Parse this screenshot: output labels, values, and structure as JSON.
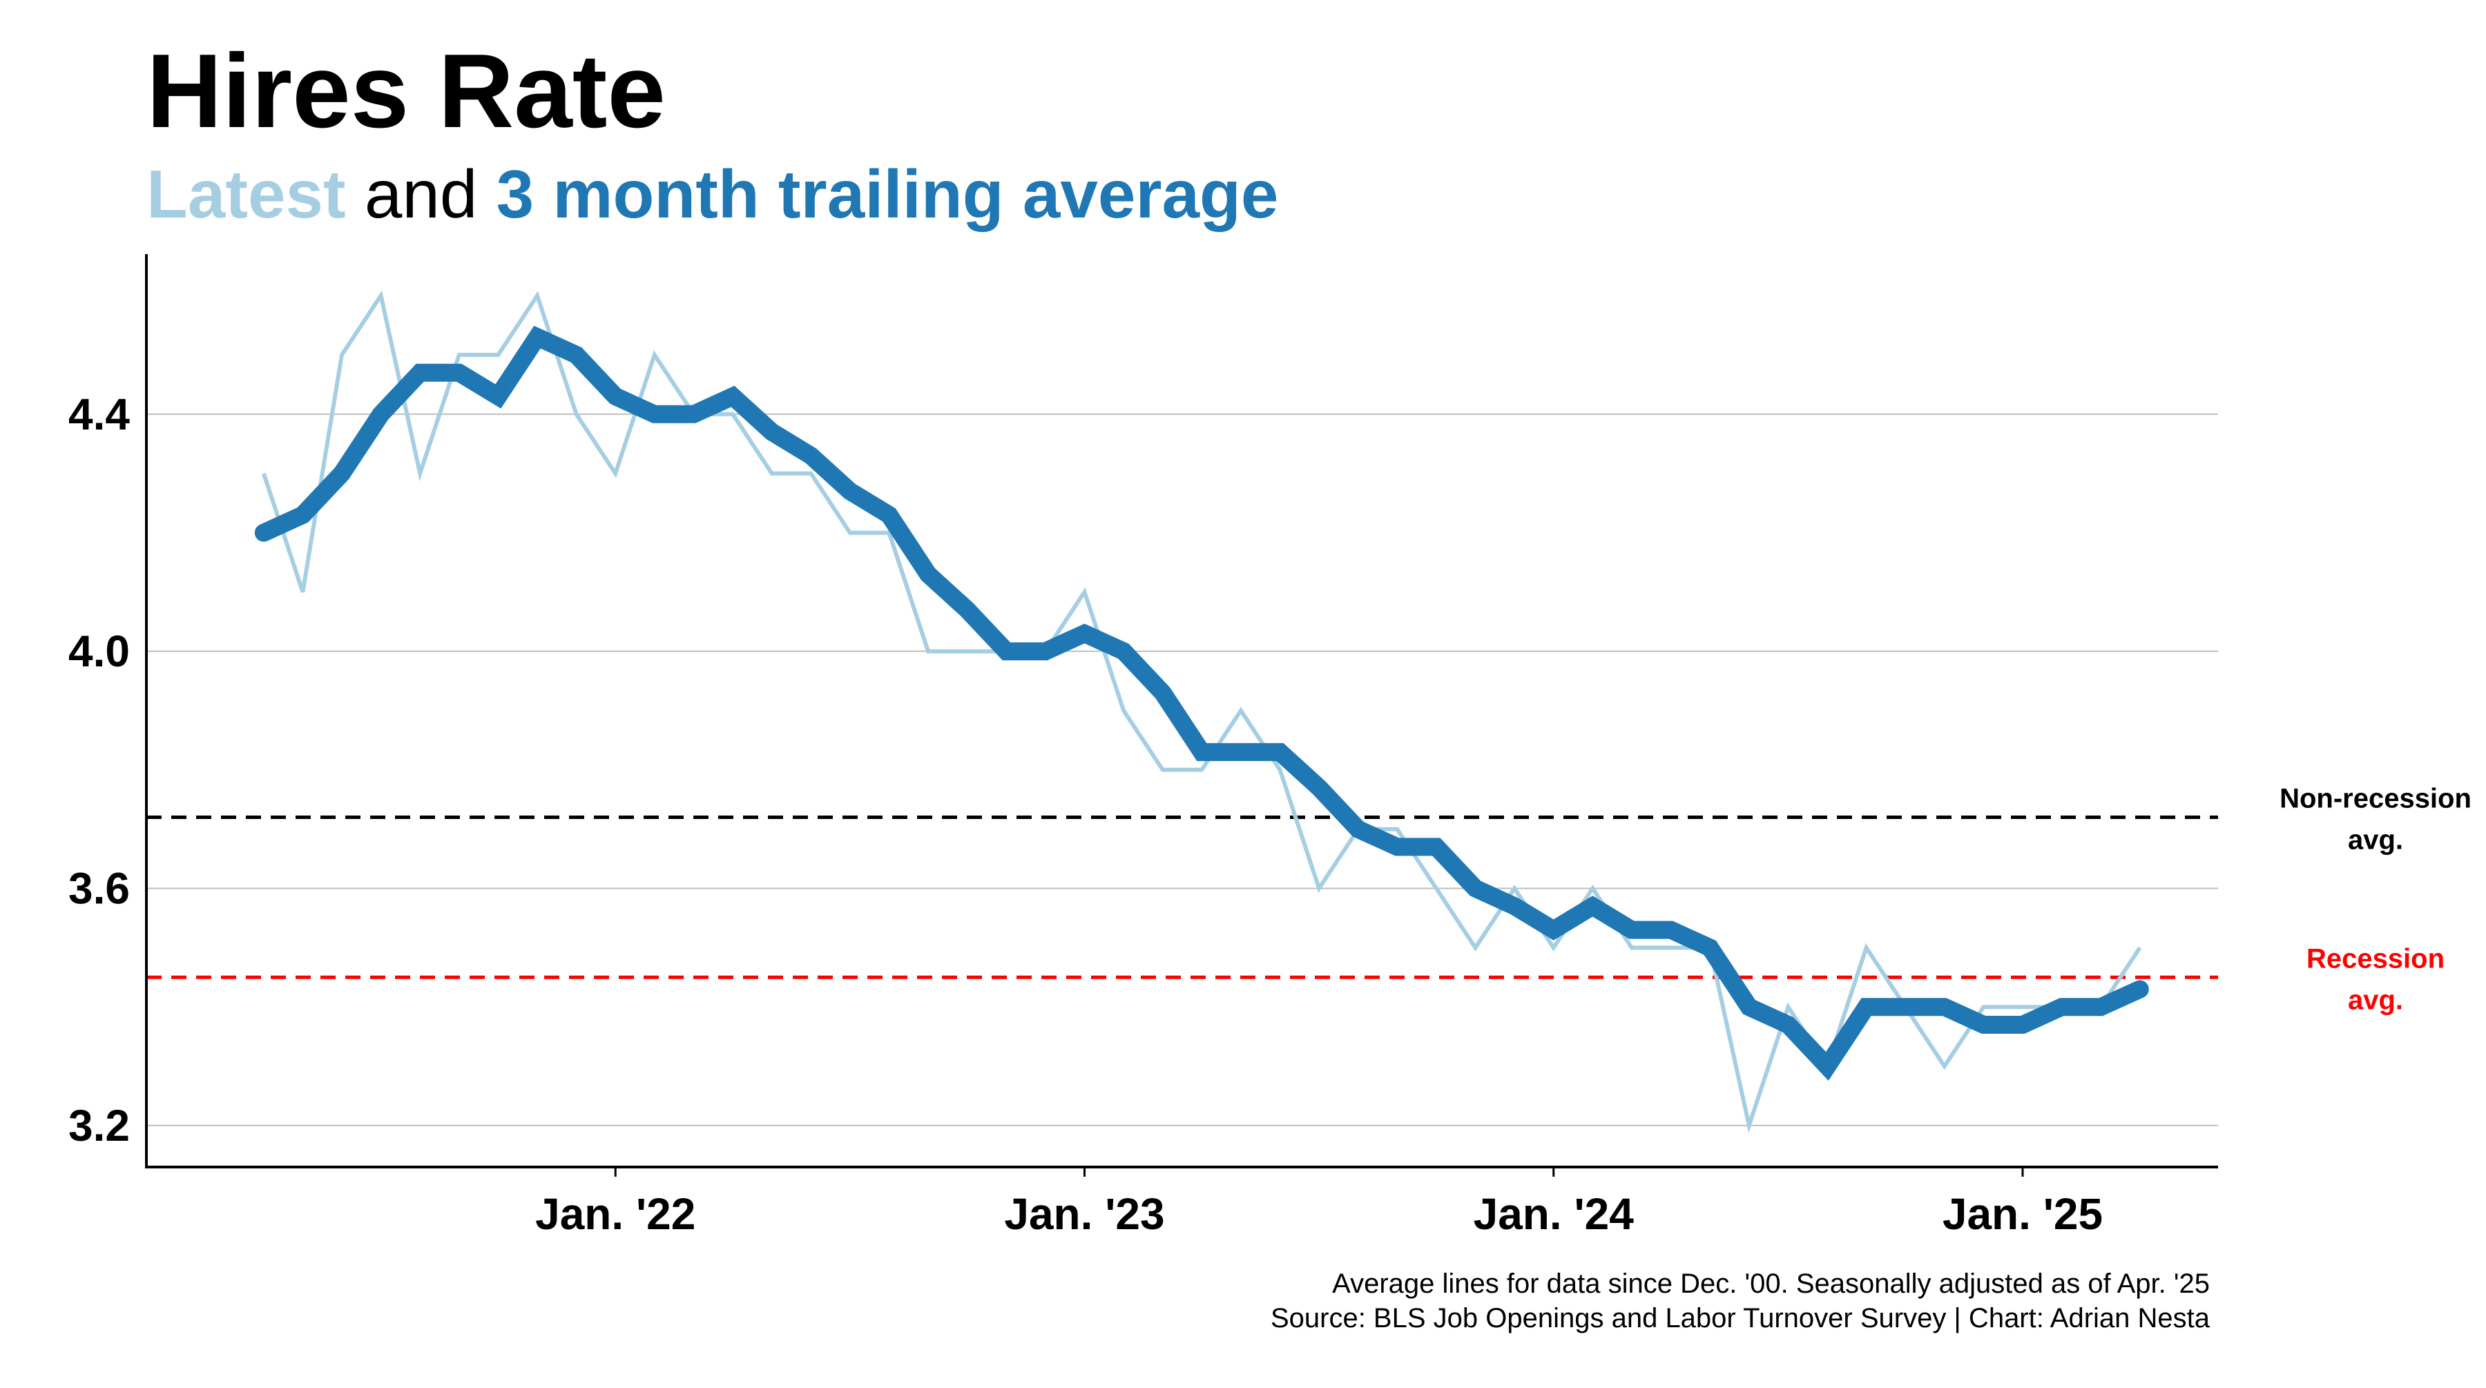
{
  "title": "Hires Rate",
  "subtitle": {
    "part1": "Latest",
    "part2": " and ",
    "part3": "3 month trailing average",
    "part1_color": "#a6cee3",
    "part3_color": "#1f78b4"
  },
  "caption": {
    "line1": "Average lines for data since Dec. '00. Seasonally adjusted as of Apr. '25",
    "line2": "Source: BLS Job Openings and Labor Turnover Survey | Chart: Adrian Nesta"
  },
  "chart_data": {
    "type": "line",
    "title": "Hires Rate",
    "xlabel": "",
    "ylabel": "",
    "ylim": [
      3.13,
      4.67
    ],
    "y_ticks": [
      "3.2",
      "3.6",
      "4.0",
      "4.4"
    ],
    "x_ticks": [
      {
        "label": "Jan. '22",
        "date": "2022-01"
      },
      {
        "label": "Jan. '23",
        "date": "2023-01"
      },
      {
        "label": "Jan. '24",
        "date": "2024-01"
      },
      {
        "label": "Jan. '25",
        "date": "2025-01"
      }
    ],
    "x_range": [
      "2021-01",
      "2025-06"
    ],
    "grid": "horizontal",
    "x": [
      "2021-04",
      "2021-05",
      "2021-06",
      "2021-07",
      "2021-08",
      "2021-09",
      "2021-10",
      "2021-11",
      "2021-12",
      "2022-01",
      "2022-02",
      "2022-03",
      "2022-04",
      "2022-05",
      "2022-06",
      "2022-07",
      "2022-08",
      "2022-09",
      "2022-10",
      "2022-11",
      "2022-12",
      "2023-01",
      "2023-02",
      "2023-03",
      "2023-04",
      "2023-05",
      "2023-06",
      "2023-07",
      "2023-08",
      "2023-09",
      "2023-10",
      "2023-11",
      "2023-12",
      "2024-01",
      "2024-02",
      "2024-03",
      "2024-04",
      "2024-05",
      "2024-06",
      "2024-07",
      "2024-08",
      "2024-09",
      "2024-10",
      "2024-11",
      "2024-12",
      "2025-01",
      "2025-02",
      "2025-03",
      "2025-04"
    ],
    "series": [
      {
        "name": "Latest",
        "color": "#a6cee3",
        "values": [
          4.3,
          4.1,
          4.5,
          4.6,
          4.3,
          4.5,
          4.5,
          4.6,
          4.4,
          4.3,
          4.5,
          4.4,
          4.4,
          4.3,
          4.3,
          4.2,
          4.2,
          4.0,
          4.0,
          4.0,
          4.0,
          4.1,
          3.9,
          3.8,
          3.8,
          3.9,
          3.8,
          3.6,
          3.7,
          3.7,
          3.6,
          3.5,
          3.6,
          3.5,
          3.6,
          3.5,
          3.5,
          3.5,
          3.2,
          3.4,
          3.3,
          3.5,
          3.4,
          3.3,
          3.4,
          3.4,
          3.4,
          3.4,
          3.5
        ]
      },
      {
        "name": "3 month trailing average",
        "color": "#1f78b4",
        "values": [
          4.2,
          4.23,
          4.3,
          4.4,
          4.47,
          4.47,
          4.43,
          4.53,
          4.5,
          4.43,
          4.4,
          4.4,
          4.43,
          4.37,
          4.33,
          4.27,
          4.23,
          4.13,
          4.07,
          4.0,
          4.0,
          4.03,
          4.0,
          3.93,
          3.83,
          3.83,
          3.83,
          3.77,
          3.7,
          3.67,
          3.67,
          3.6,
          3.57,
          3.53,
          3.57,
          3.53,
          3.53,
          3.5,
          3.4,
          3.37,
          3.3,
          3.4,
          3.4,
          3.4,
          3.37,
          3.37,
          3.4,
          3.4,
          3.43
        ]
      }
    ],
    "reference_lines": [
      {
        "value": 3.72,
        "label_line1": "Non-recession",
        "label_line2": "avg.",
        "color": "#000000"
      },
      {
        "value": 3.45,
        "label_line1": "Recession",
        "label_line2": "avg.",
        "color": "#ff0000"
      }
    ]
  }
}
